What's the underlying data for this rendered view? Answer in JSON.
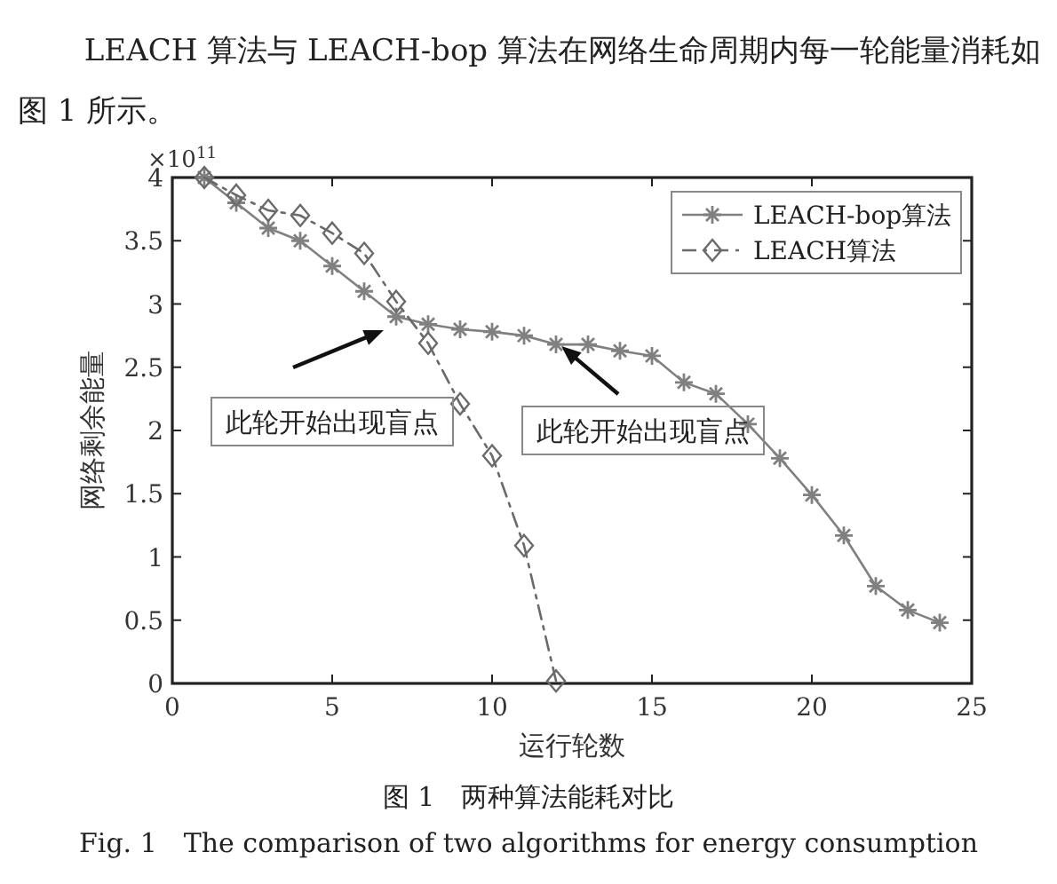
{
  "chart_data": {
    "type": "line",
    "title": "图 1　两种算法能耗对比",
    "subtitle": "Fig. 1　The comparison of two algorithms for energy consumption",
    "xlabel": "运行轮数",
    "ylabel": "网络剩余能量",
    "xlim": [
      0,
      25
    ],
    "xticks": [
      0,
      5,
      10,
      15,
      20,
      25
    ],
    "ylim": [
      0,
      4
    ],
    "yticks": [
      0,
      0.5,
      1,
      1.5,
      2,
      2.5,
      3,
      3.5,
      4
    ],
    "legend": "top right",
    "grid": false,
    "series": [
      {
        "name": "LEACH-bop算法",
        "color": "#808080",
        "marker": "cross",
        "line_style": "solid",
        "x": [
          1,
          2,
          3,
          4,
          5,
          6,
          7,
          8,
          9,
          10,
          11,
          12,
          13,
          14,
          15,
          16,
          17,
          18,
          19,
          20,
          21,
          22,
          23,
          24
        ],
        "values": [
          4.0,
          3.8,
          3.6,
          3.5,
          3.3,
          3.1,
          2.9,
          2.84,
          2.8,
          2.78,
          2.75,
          2.68,
          2.68,
          2.63,
          2.59,
          2.38,
          2.29,
          2.05,
          1.78,
          1.49,
          1.17,
          0.77,
          0.58,
          0.48
        ]
      },
      {
        "name": "LEACH算法",
        "color": "#6a6a6a",
        "marker": "diamond",
        "line_style": "dashed",
        "x": [
          1,
          2,
          3,
          4,
          5,
          6,
          7,
          8,
          9,
          10,
          11,
          12
        ],
        "values": [
          4.0,
          3.86,
          3.74,
          3.7,
          3.56,
          3.4,
          3.02,
          2.69,
          2.21,
          1.8,
          1.09,
          0.02
        ]
      }
    ],
    "annotations": [
      "LEACH 算法与 LEACH-bop 算法在网络生命周期内每一轮能量消耗如图 1 所示。",
      "×10$^{11}$",
      "此轮开始出现盲点",
      "此轮开始出现盲点"
    ]
  }
}
